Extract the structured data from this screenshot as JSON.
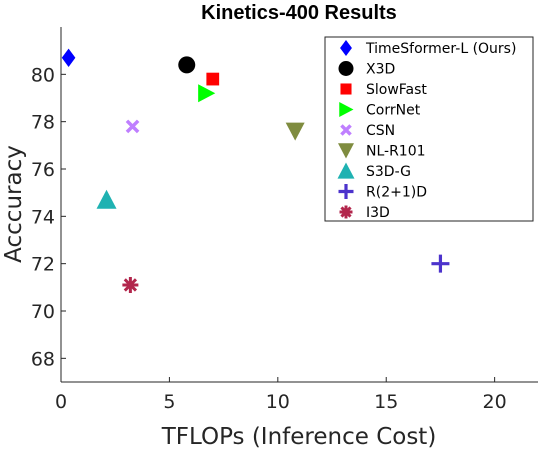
{
  "chart_data": {
    "type": "scatter",
    "title": "Kinetics-400 Results",
    "xlabel": "TFLOPs (Inference Cost)",
    "ylabel": "Acccuracy",
    "xlim": [
      0,
      22
    ],
    "ylim": [
      67,
      82
    ],
    "xticks": [
      "0",
      "5",
      "10",
      "15",
      "20"
    ],
    "yticks": [
      "68",
      "70",
      "72",
      "74",
      "76",
      "78",
      "80"
    ],
    "grid": false,
    "legend_position": "top-right",
    "series": [
      {
        "name": "TimeSformer-L (Ours)",
        "x": 0.35,
        "y": 80.7,
        "marker": "diamond",
        "color": "#0000ff"
      },
      {
        "name": "X3D",
        "x": 5.8,
        "y": 80.4,
        "marker": "circle",
        "color": "#000000"
      },
      {
        "name": "SlowFast",
        "x": 7.0,
        "y": 79.8,
        "marker": "square",
        "color": "#ff0000"
      },
      {
        "name": "CorrNet",
        "x": 6.7,
        "y": 79.2,
        "marker": "triangle-right",
        "color": "#00ff00"
      },
      {
        "name": "CSN",
        "x": 3.3,
        "y": 77.8,
        "marker": "x",
        "color": "#bf7fff"
      },
      {
        "name": "NL-R101",
        "x": 10.8,
        "y": 77.6,
        "marker": "triangle-down",
        "color": "#7f8c3f"
      },
      {
        "name": "S3D-G",
        "x": 2.1,
        "y": 74.7,
        "marker": "triangle-up",
        "color": "#1fb2b2"
      },
      {
        "name": "R(2+1)D",
        "x": 17.5,
        "y": 72.0,
        "marker": "plus",
        "color": "#4c33cc"
      },
      {
        "name": "I3D",
        "x": 3.2,
        "y": 71.1,
        "marker": "asterisk",
        "color": "#b2264c"
      }
    ]
  }
}
